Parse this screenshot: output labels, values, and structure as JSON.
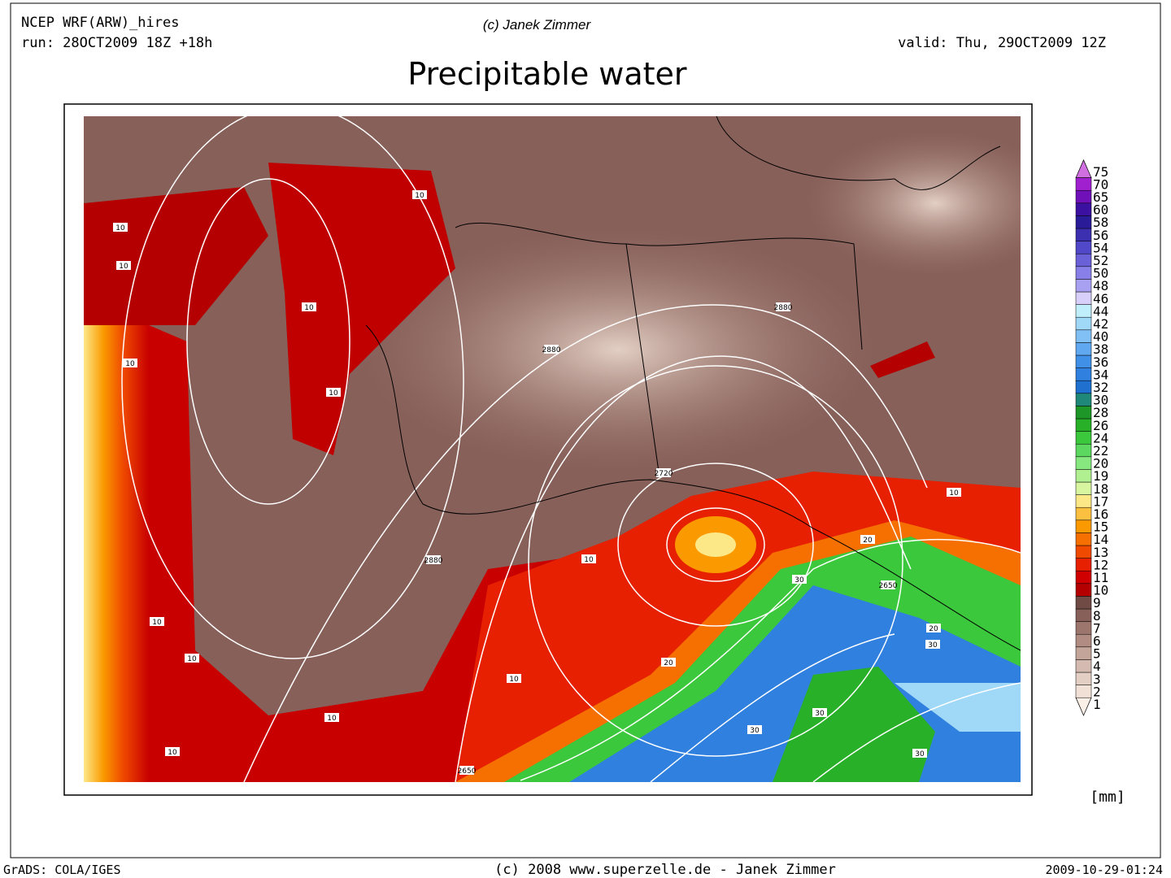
{
  "header": {
    "model": "NCEP WRF(ARW)_hires",
    "run": "run: 28OCT2009 18Z +18h",
    "copyright": "(c) Janek Zimmer",
    "valid": "valid: Thu, 29OCT2009 12Z",
    "title": "Precipitable water"
  },
  "colorbar": {
    "unit": "[mm]",
    "levels": [
      {
        "label": "1",
        "color": "#fbf0e8"
      },
      {
        "label": "2",
        "color": "#f0e0d6"
      },
      {
        "label": "3",
        "color": "#e3cfc4"
      },
      {
        "label": "4",
        "color": "#d4bab0"
      },
      {
        "label": "5",
        "color": "#c4a59a"
      },
      {
        "label": "6",
        "color": "#b08c82"
      },
      {
        "label": "7",
        "color": "#9c766c"
      },
      {
        "label": "8",
        "color": "#87605a"
      },
      {
        "label": "9",
        "color": "#704a44"
      },
      {
        "label": "10",
        "color": "#b40000"
      },
      {
        "label": "11",
        "color": "#d00000"
      },
      {
        "label": "12",
        "color": "#e62000"
      },
      {
        "label": "13",
        "color": "#f04a00"
      },
      {
        "label": "14",
        "color": "#f57000"
      },
      {
        "label": "15",
        "color": "#fa9a00"
      },
      {
        "label": "16",
        "color": "#fcc040"
      },
      {
        "label": "17",
        "color": "#fde888"
      },
      {
        "label": "18",
        "color": "#d8f5a0"
      },
      {
        "label": "19",
        "color": "#b0f090"
      },
      {
        "label": "20",
        "color": "#88e880"
      },
      {
        "label": "22",
        "color": "#5cd860"
      },
      {
        "label": "24",
        "color": "#3cc83c"
      },
      {
        "label": "26",
        "color": "#28b028"
      },
      {
        "label": "28",
        "color": "#1e9628"
      },
      {
        "label": "30",
        "color": "#208878"
      },
      {
        "label": "32",
        "color": "#2070d0"
      },
      {
        "label": "34",
        "color": "#3080e0"
      },
      {
        "label": "36",
        "color": "#4090e8"
      },
      {
        "label": "38",
        "color": "#60a8f0"
      },
      {
        "label": "40",
        "color": "#80c0f5"
      },
      {
        "label": "42",
        "color": "#a0d8f8"
      },
      {
        "label": "44",
        "color": "#c0eefa"
      },
      {
        "label": "46",
        "color": "#d8d0fa"
      },
      {
        "label": "48",
        "color": "#a8a0f0"
      },
      {
        "label": "50",
        "color": "#8880e8"
      },
      {
        "label": "52",
        "color": "#6a60d8"
      },
      {
        "label": "54",
        "color": "#5048c8"
      },
      {
        "label": "56",
        "color": "#3c30b0"
      },
      {
        "label": "58",
        "color": "#2a1c98"
      },
      {
        "label": "60",
        "color": "#3c10a0"
      },
      {
        "label": "65",
        "color": "#7010b8"
      },
      {
        "label": "70",
        "color": "#a020d0"
      },
      {
        "label": "75",
        "color": "#d070e0"
      }
    ]
  },
  "contour_labels": [
    "10",
    "10",
    "10",
    "10",
    "10",
    "10",
    "10",
    "10",
    "10",
    "10",
    "10",
    "10",
    "10",
    "2880",
    "2880",
    "2880",
    "2720",
    "2650",
    "2650",
    "20",
    "20",
    "20",
    "30",
    "30",
    "30",
    "30",
    "30"
  ],
  "footer": {
    "left": "GrADS: COLA/IGES",
    "center": "(c) 2008 www.superzelle.de - Janek Zimmer",
    "right": "2009-10-29-01:24"
  }
}
